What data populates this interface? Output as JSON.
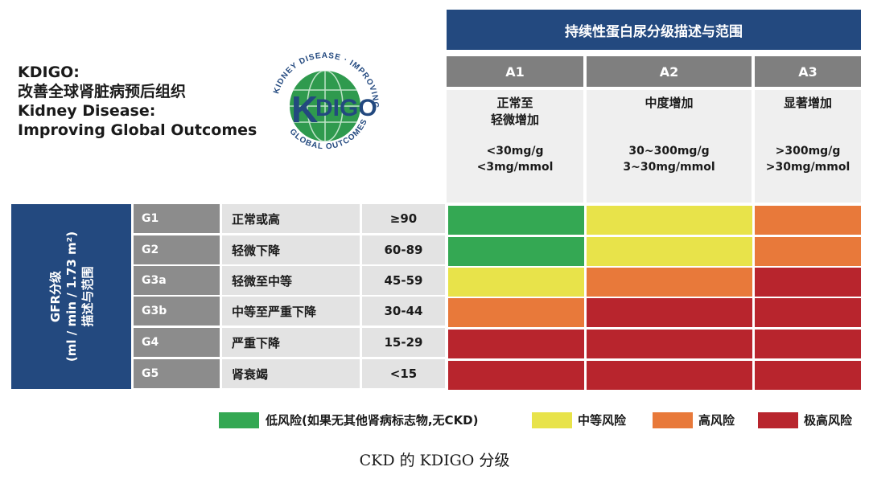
{
  "org": {
    "line1": "KDIGO:",
    "line2": "改善全球肾脏病预后组织",
    "line3": "Kidney Disease:",
    "line4": "Improving Global Outcomes"
  },
  "logo": {
    "center_text": "KDIGO",
    "ring_text": "KIDNEY DISEASE · IMPROVING GLOBAL OUTCOMES ®"
  },
  "albuminuria_header": "持续性蛋白尿分级描述与范围",
  "columns": [
    {
      "code": "A1",
      "desc1": "正常至",
      "desc2": "轻微增加",
      "range1": "<30mg/g",
      "range2": "<3mg/mmol"
    },
    {
      "code": "A2",
      "desc1": "中度增加",
      "desc2": "",
      "range1": "30~300mg/g",
      "range2": "3~30mg/mmol"
    },
    {
      "code": "A3",
      "desc1": "显著增加",
      "desc2": "",
      "range1": ">300mg/g",
      "range2": ">30mg/mmol"
    }
  ],
  "gfr_label": {
    "line1": "GFR分级",
    "line2": "(ml / min / 1.73 m²)",
    "line3": "描述与范围"
  },
  "rows": [
    {
      "code": "G1",
      "desc": "正常或高",
      "range": "≥90",
      "risk": [
        "low",
        "moderate",
        "high"
      ]
    },
    {
      "code": "G2",
      "desc": "轻微下降",
      "range": "60-89",
      "risk": [
        "low",
        "moderate",
        "high"
      ]
    },
    {
      "code": "G3a",
      "desc": "轻微至中等",
      "range": "45-59",
      "risk": [
        "moderate",
        "high",
        "very_high"
      ]
    },
    {
      "code": "G3b",
      "desc": "中等至严重下降",
      "range": "30-44",
      "risk": [
        "high",
        "very_high",
        "very_high"
      ]
    },
    {
      "code": "G4",
      "desc": "严重下降",
      "range": "15-29",
      "risk": [
        "very_high",
        "very_high",
        "very_high"
      ]
    },
    {
      "code": "G5",
      "desc": "肾衰竭",
      "range": "<15",
      "risk": [
        "very_high",
        "very_high",
        "very_high"
      ]
    }
  ],
  "risk_colors": {
    "low": "#34a853",
    "moderate": "#e8e34a",
    "high": "#e8793a",
    "very_high": "#b8252d"
  },
  "legend": [
    {
      "key": "low",
      "label": "低风险(如果无其他肾病标志物,无CKD)"
    },
    {
      "key": "moderate",
      "label": "中等风险"
    },
    {
      "key": "high",
      "label": "高风险"
    },
    {
      "key": "very_high",
      "label": "极高风险"
    }
  ],
  "caption": "CKD 的 KDIGO 分级"
}
